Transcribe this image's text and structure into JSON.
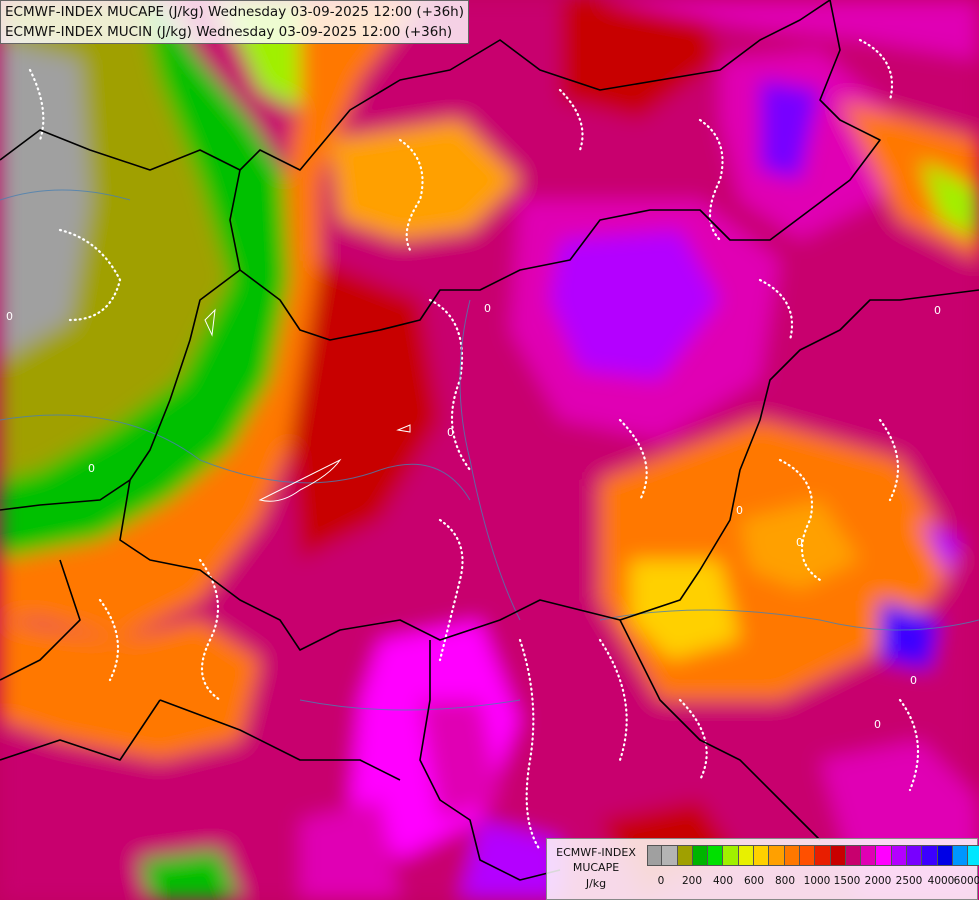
{
  "titles": {
    "line1": "ECMWF-INDEX MUCAPE (J/kg) Wednesday 03-09-2025 12:00 (+36h)",
    "line2": "ECMWF-INDEX MUCIN (J/kg) Wednesday 03-09-2025 12:00 (+36h)"
  },
  "contour_label": "0",
  "legend": {
    "model": "ECMWF-INDEX",
    "field": "MUCAPE",
    "unit": "J/kg",
    "colors": [
      "#a0a0a0",
      "#b4b4b4",
      "#a0a000",
      "#00b400",
      "#00e000",
      "#a0f000",
      "#e8f000",
      "#ffd000",
      "#ffa000",
      "#ff7800",
      "#ff5000",
      "#e81e00",
      "#c80000",
      "#c8006e",
      "#e000b4",
      "#ff00ff",
      "#b400ff",
      "#7800ff",
      "#3c00ff",
      "#0000e6",
      "#0096ff",
      "#00e6ff",
      "#a0ffff",
      "#ffffff"
    ],
    "ticks": [
      "0",
      "200",
      "400",
      "600",
      "800",
      "1000",
      "1500",
      "2000",
      "2500",
      "4000",
      "6000"
    ]
  }
}
